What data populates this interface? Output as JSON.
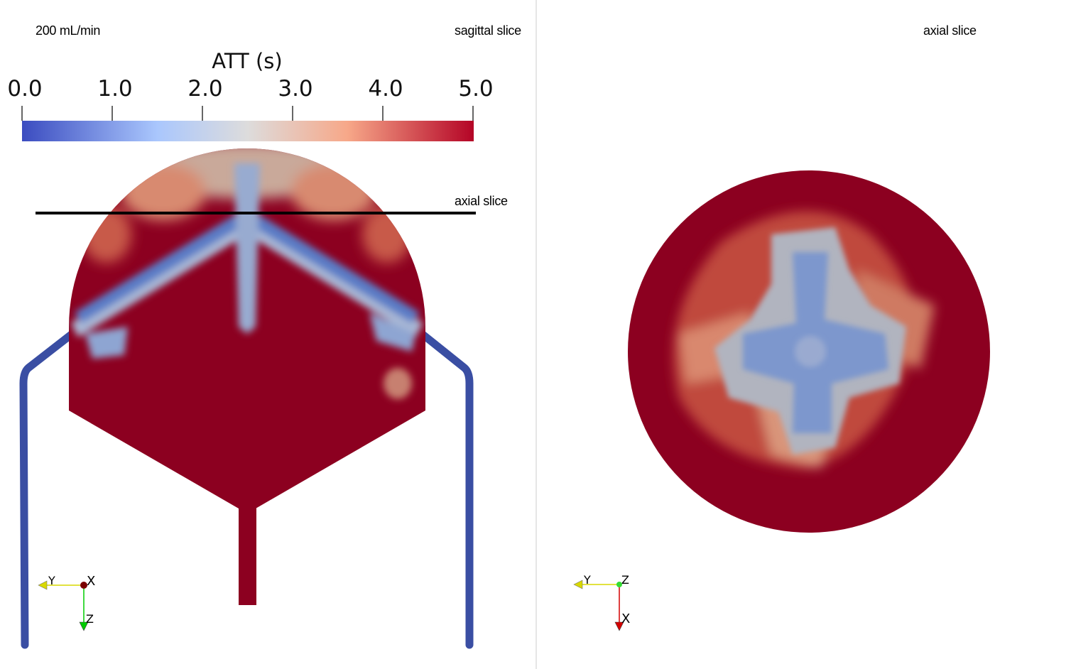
{
  "left_view": {
    "flow_label": "200 mL/min",
    "view_label": "sagittal slice",
    "slice_line_label": "axial slice",
    "colorbar": {
      "title": "ATT (s)",
      "ticks": [
        "0.0",
        "1.0",
        "2.0",
        "3.0",
        "4.0",
        "5.0"
      ],
      "range": [
        0.0,
        5.0
      ],
      "colors": [
        "#3b4cc0",
        "#aac7fd",
        "#dddcdc",
        "#f7a889",
        "#b40426"
      ]
    },
    "axes": {
      "horizontal": "Y",
      "out_of_plane": "X",
      "vertical": "Z"
    }
  },
  "right_view": {
    "view_label": "axial slice",
    "axes": {
      "horizontal": "Y",
      "out_of_plane": "Z",
      "vertical": "X"
    }
  },
  "colors": {
    "high_att": "#8c0020",
    "low_att": "#5a7bc6",
    "tube": "#3a4ea3",
    "slice_line": "#000000"
  }
}
